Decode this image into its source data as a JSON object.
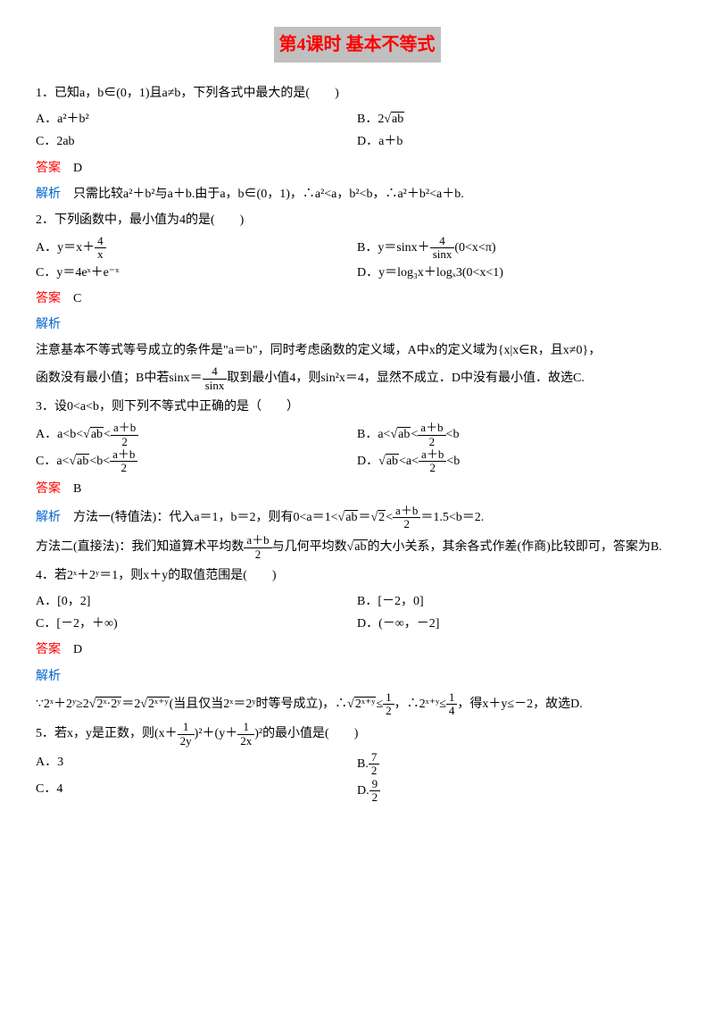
{
  "title": "第4课时 基本不等式",
  "q1": {
    "stem": "1．已知a，b∈(0，1)且a≠b，下列各式中最大的是(　　)",
    "a": "A．a²＋b²",
    "b_pre": "B．2",
    "b_sqrt": "ab",
    "c": "C．2ab",
    "d": "D．a＋b",
    "ans_label": "答案",
    "ans": "　D",
    "ana_label": "解析",
    "ana": "　只需比较a²＋b²与a＋b.由于a，b∈(0，1)，∴a²<a，b²<b，∴a²＋b²<a＋b."
  },
  "q2": {
    "stem": "2．下列函数中，最小值为4的是(　　)",
    "a_pre": "A．y＝x＋",
    "a_num": "4",
    "a_den": "x",
    "b_pre": "B．y＝sinx＋",
    "b_num": "4",
    "b_den": "sinx",
    "b_post": "(0<x<π)",
    "c": "C．y＝4eˣ＋e⁻ˣ",
    "d": "D．y＝log₃x＋logₓ3(0<x<1)",
    "ans_label": "答案",
    "ans": "　C",
    "ana_label": "解析",
    "ana1": "注意基本不等式等号成立的条件是\"a＝b\"，同时考虑函数的定义域，A中x的定义域为{x|x∈R，且x≠0}，",
    "ana2_pre": "函数没有最小值；B中若sinx＝",
    "ana2_num": "4",
    "ana2_den": "sinx",
    "ana2_post": "取到最小值4，则sin²x＝4，显然不成立．D中没有最小值．故选C."
  },
  "q3": {
    "stem": "3．设0<a<b，则下列不等式中正确的是（　　）",
    "ab_num": "a＋b",
    "ab_den": "2",
    "sqrt_ab": "ab",
    "a_pre": "A．a<b<",
    "a_mid": "<",
    "b_pre": "B．a<",
    "b_mid": "<",
    "b_post": "<b",
    "c_pre": "C．a<",
    "c_mid": "<b<",
    "d_pre": "D．",
    "d_mid": "<a<",
    "d_post": "<b",
    "ans_label": "答案",
    "ans": "　B",
    "ana_label": "解析",
    "ana1_pre": "　方法一(特值法)：代入a＝1，b＝2，则有0<a＝1<",
    "ana1_sqrt": "ab",
    "ana1_eq": "＝",
    "ana1_sqrt2": "2",
    "ana1_lt": "<",
    "ana1_post": "＝1.5<b＝2.",
    "ana2_pre": "方法二(直接法)：我们知道算术平均数",
    "ana2_mid": "与几何平均数",
    "ana2_post": "的大小关系，其余各式作差(作商)比较即可，答案为B."
  },
  "q4": {
    "stem": "4．若2ˣ＋2ʸ＝1，则x＋y的取值范围是(　　)",
    "a": "A．[0，2]",
    "b": "B．[－2，0]",
    "c": "C．[－2，＋∞)",
    "d": "D．(－∞，－2]",
    "ans_label": "答案",
    "ans": "　D",
    "ana_label": "解析",
    "ana_pre": "∵2ˣ＋2ʸ≥2",
    "ana_sqrt1": "2ˣ·2ʸ",
    "ana_eq": "＝2",
    "ana_sqrt2": "2ˣ⁺ʸ",
    "ana_mid": "(当且仅当2ˣ＝2ʸ时等号成立)，∴",
    "ana_sqrt3": "2ˣ⁺ʸ",
    "ana_le": "≤",
    "ana_half_num": "1",
    "ana_half_den": "2",
    "ana_comma": "，∴2ˣ⁺ʸ≤",
    "ana_q_num": "1",
    "ana_q_den": "4",
    "ana_post": "，得x＋y≤－2，故选D."
  },
  "q5": {
    "stem_pre": "5．若x，y是正数，则(x＋",
    "stem_f1_num": "1",
    "stem_f1_den": "2y",
    "stem_mid": ")²＋(y＋",
    "stem_f2_num": "1",
    "stem_f2_den": "2x",
    "stem_post": ")²的最小值是(　　)",
    "a": "A．3",
    "b_pre": "B.",
    "b_num": "7",
    "b_den": "2",
    "c": "C．4",
    "d_pre": "D.",
    "d_num": "9",
    "d_den": "2"
  }
}
